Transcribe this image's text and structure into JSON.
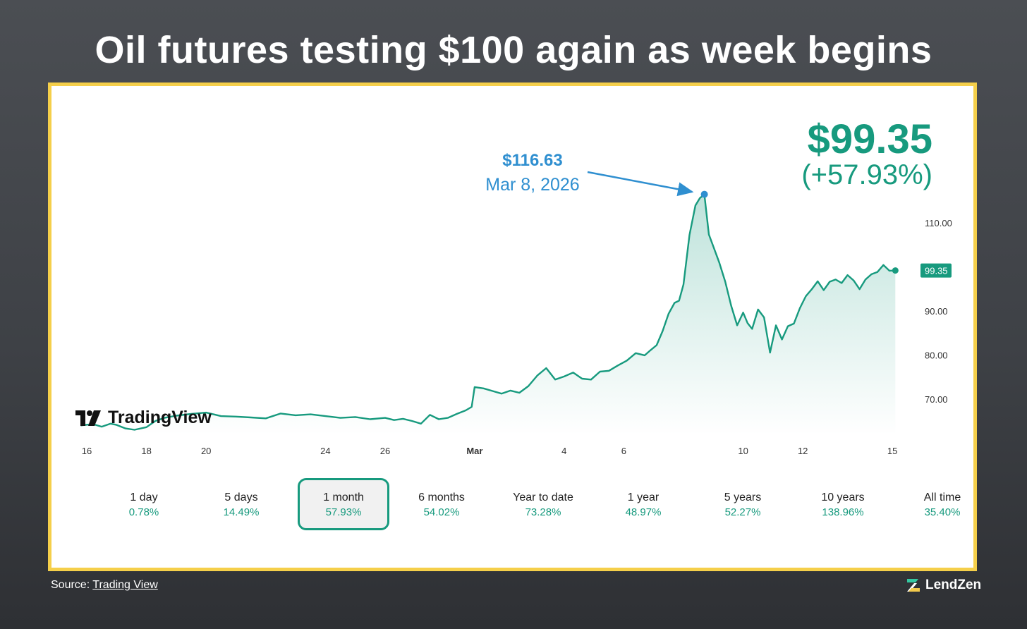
{
  "headline": "Oil futures testing $100 again as week begins",
  "current": {
    "price": "$99.35",
    "change": "(+57.93%)",
    "last_label": "99.35"
  },
  "peak": {
    "price": "$116.63",
    "date": "Mar 8, 2026",
    "x_day": 20.7,
    "value": 116.63
  },
  "logo_text": "TradingView",
  "ranges": [
    {
      "label": "1 day",
      "value": "0.78%",
      "active": false
    },
    {
      "label": "5 days",
      "value": "14.49%",
      "active": false
    },
    {
      "label": "1 month",
      "value": "57.93%",
      "active": true
    },
    {
      "label": "6 months",
      "value": "54.02%",
      "active": false
    },
    {
      "label": "Year to date",
      "value": "73.28%",
      "active": false
    },
    {
      "label": "1 year",
      "value": "48.97%",
      "active": false
    },
    {
      "label": "5 years",
      "value": "52.27%",
      "active": false
    },
    {
      "label": "10 years",
      "value": "138.96%",
      "active": false
    },
    {
      "label": "All time",
      "value": "35.40%",
      "active": false
    }
  ],
  "source": {
    "prefix": "Source: ",
    "link": "Trading View"
  },
  "brand": "LendZen",
  "colors": {
    "line": "#179a7e",
    "annotation": "#2f8fd0",
    "frame": "#f5cf4a"
  },
  "chart_data": {
    "type": "area",
    "title": "",
    "xlabel": "",
    "ylabel": "",
    "x_ticks": [
      {
        "label": "16",
        "day": 0
      },
      {
        "label": "18",
        "day": 2
      },
      {
        "label": "20",
        "day": 4
      },
      {
        "label": "24",
        "day": 8
      },
      {
        "label": "26",
        "day": 10
      },
      {
        "label": "Mar",
        "day": 13
      },
      {
        "label": "4",
        "day": 16
      },
      {
        "label": "6",
        "day": 18
      },
      {
        "label": "10",
        "day": 22
      },
      {
        "label": "12",
        "day": 24
      },
      {
        "label": "15",
        "day": 27
      }
    ],
    "y_ticks": [
      "70.00",
      "80.00",
      "90.00",
      "110.00"
    ],
    "y_tick_values": [
      70,
      80,
      90,
      110
    ],
    "ylim": [
      63,
      118
    ],
    "series": [
      {
        "x": [
          -0.2,
          0.2,
          0.5,
          0.8,
          1.0,
          1.3,
          1.6,
          2.0,
          2.3,
          2.6,
          3.0,
          3.5,
          4.0,
          4.5,
          5.0,
          5.5,
          6.0,
          6.5,
          7.0,
          7.5,
          8.0,
          8.5,
          9.0,
          9.5,
          10.0,
          10.3,
          10.6,
          10.9,
          11.2,
          11.5,
          11.8,
          12.1,
          12.4,
          12.7,
          12.9,
          13.0,
          13.3,
          13.6,
          13.9,
          14.2,
          14.5,
          14.8,
          15.1,
          15.4,
          15.7,
          16.0,
          16.3,
          16.6,
          16.9,
          17.2,
          17.5,
          17.8,
          18.1,
          18.4,
          18.7,
          18.9,
          19.1,
          19.3,
          19.5,
          19.7,
          19.85,
          20.0,
          20.2,
          20.4,
          20.55,
          20.7,
          20.85,
          21.0,
          21.2,
          21.4,
          21.6,
          21.8,
          22.0,
          22.15,
          22.3,
          22.5,
          22.7,
          22.9,
          23.1,
          23.3,
          23.5,
          23.7,
          23.9,
          24.1,
          24.3,
          24.5,
          24.7,
          24.9,
          25.1,
          25.3,
          25.5,
          25.7,
          25.9,
          26.1,
          26.3,
          26.5,
          26.7,
          26.9,
          27.1
        ],
        "y": [
          64.2,
          64.5,
          63.9,
          64.6,
          64.3,
          63.5,
          63.2,
          63.8,
          65.2,
          65.9,
          66.4,
          66.8,
          67.1,
          66.3,
          66.2,
          66.0,
          65.8,
          66.9,
          66.5,
          66.7,
          66.3,
          65.9,
          66.1,
          65.6,
          65.9,
          65.4,
          65.7,
          65.2,
          64.6,
          66.6,
          65.6,
          65.9,
          66.8,
          67.6,
          68.4,
          72.9,
          72.6,
          72.0,
          71.4,
          72.1,
          71.6,
          73.1,
          75.5,
          77.2,
          74.6,
          75.3,
          76.2,
          74.8,
          74.6,
          76.4,
          76.6,
          77.8,
          78.9,
          80.6,
          80.1,
          81.3,
          82.4,
          85.6,
          89.5,
          92.0,
          92.5,
          96.2,
          107.4,
          114.1,
          115.8,
          116.6,
          107.5,
          104.8,
          101.1,
          96.8,
          91.3,
          86.9,
          89.8,
          87.4,
          86.1,
          90.5,
          88.7,
          80.7,
          86.9,
          83.7,
          86.7,
          87.3,
          90.8,
          93.5,
          95.1,
          96.9,
          94.9,
          96.8,
          97.3,
          96.5,
          98.3,
          97.1,
          95.1,
          97.3,
          98.5,
          99.0,
          100.6,
          99.3,
          99.35
        ]
      }
    ]
  }
}
